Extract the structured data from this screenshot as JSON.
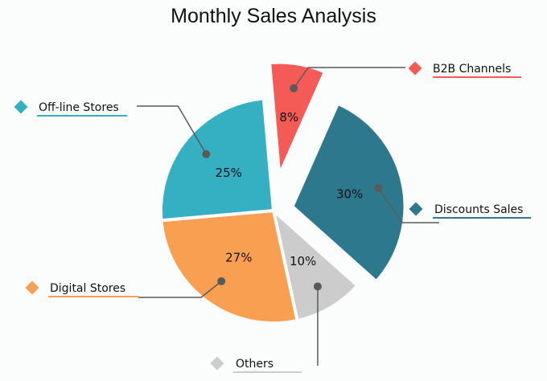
{
  "chart_data": {
    "type": "pie",
    "title": "Monthly Sales Analysis",
    "slices": [
      {
        "label": "B2B Channels",
        "value": 8,
        "text": "8%",
        "color": "#f45b56",
        "exploded": true
      },
      {
        "label": "Discounts Sales",
        "value": 30,
        "text": "30%",
        "color": "#2e788d",
        "exploded": true
      },
      {
        "label": "Others",
        "value": 10,
        "text": "10%",
        "color": "#cccccc",
        "exploded": false
      },
      {
        "label": "Digital Stores",
        "value": 27,
        "text": "27%",
        "color": "#f99f52",
        "exploded": false
      },
      {
        "label": "Off-line Stores",
        "value": 25,
        "text": "25%",
        "color": "#35b0c2",
        "exploded": false
      }
    ],
    "legend_marker": "diamond",
    "leader_color": "#5a5a5a"
  }
}
